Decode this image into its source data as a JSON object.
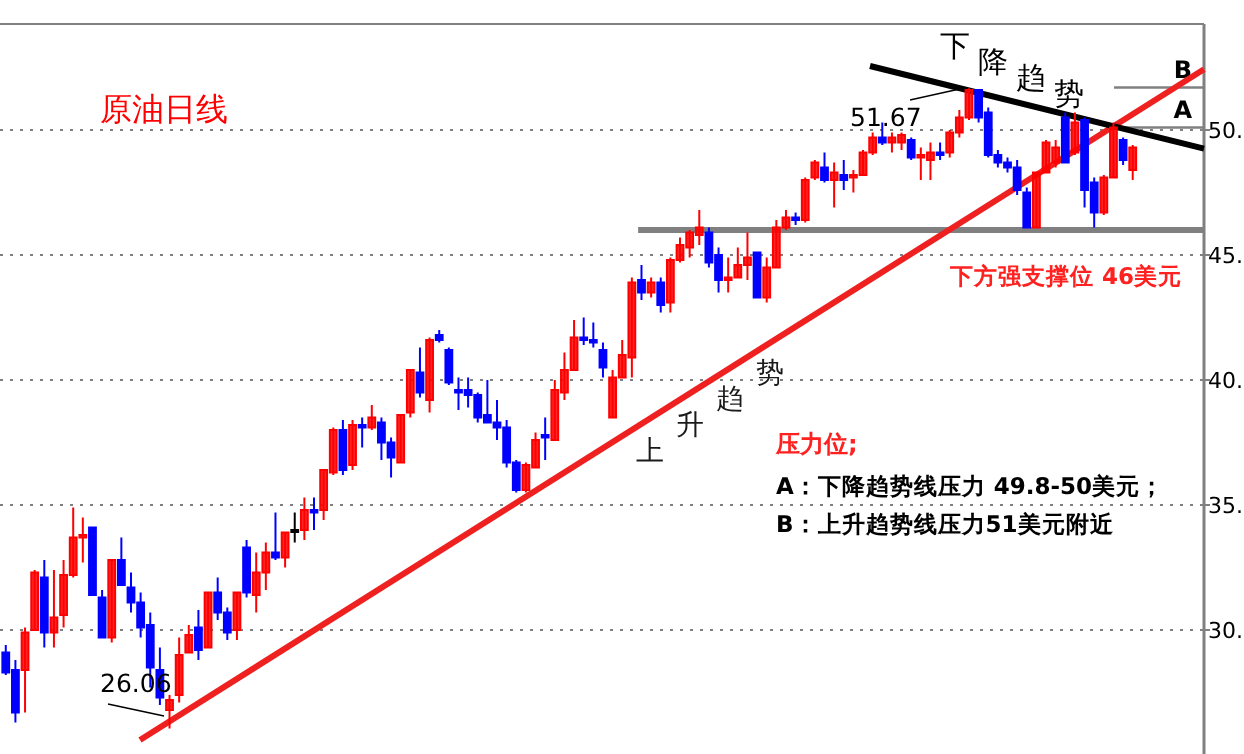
{
  "chart_data": {
    "type": "candlestick",
    "title": "原油日线",
    "categories": [
      null,
      null,
      null,
      null,
      null,
      null,
      null,
      null,
      null,
      null,
      null,
      null,
      null,
      null,
      null,
      null,
      null,
      null,
      null,
      null,
      null,
      null,
      null,
      null,
      null,
      null,
      null,
      null,
      null,
      null,
      null,
      null,
      null,
      null,
      null,
      null,
      null,
      null,
      null,
      null,
      null,
      null,
      null,
      null,
      null,
      null,
      null,
      null,
      null,
      null,
      null,
      null,
      null,
      null,
      null,
      null,
      null,
      null,
      null,
      null,
      null,
      null,
      null,
      null,
      null,
      null,
      null,
      null,
      null,
      null,
      null,
      null,
      null,
      null,
      null,
      null,
      null,
      null,
      null,
      null,
      null,
      null,
      null,
      null,
      null,
      null,
      null,
      null,
      null,
      null,
      null,
      null,
      null,
      null,
      null,
      null,
      null,
      null,
      null,
      null,
      null,
      null,
      null,
      null,
      null,
      null,
      null,
      null,
      null,
      null,
      null,
      null,
      null,
      null,
      null,
      null,
      null,
      null
    ],
    "ohlc": [
      [
        29.1,
        29.4,
        28.2,
        28.3
      ],
      [
        28.4,
        28.8,
        26.3,
        26.7
      ],
      [
        28.4,
        30.1,
        26.7,
        29.9
      ],
      [
        30.0,
        32.4,
        30.0,
        32.3
      ],
      [
        32.1,
        32.8,
        29.3,
        29.9
      ],
      [
        29.9,
        32.4,
        29.3,
        30.5
      ],
      [
        30.6,
        32.8,
        30.1,
        32.2
      ],
      [
        32.2,
        34.9,
        32.1,
        33.7
      ],
      [
        33.7,
        34.5,
        32.7,
        33.8
      ],
      [
        34.1,
        34.1,
        31.4,
        31.4
      ],
      [
        31.3,
        31.6,
        29.7,
        29.7
      ],
      [
        29.7,
        32.8,
        29.5,
        32.8
      ],
      [
        32.8,
        33.7,
        31.8,
        31.8
      ],
      [
        31.7,
        32.3,
        30.7,
        31.1
      ],
      [
        31.1,
        31.5,
        29.7,
        30.1
      ],
      [
        30.2,
        30.7,
        27.7,
        28.5
      ],
      [
        28.4,
        29.3,
        27.0,
        27.3
      ],
      [
        26.8,
        27.4,
        26.06,
        27.2
      ],
      [
        27.4,
        29.7,
        27.1,
        29.0
      ],
      [
        29.1,
        30.2,
        29.1,
        29.8
      ],
      [
        30.1,
        30.8,
        28.8,
        29.2
      ],
      [
        29.3,
        31.5,
        29.3,
        31.5
      ],
      [
        31.5,
        32.1,
        30.4,
        30.7
      ],
      [
        30.7,
        30.9,
        29.6,
        29.9
      ],
      [
        30.0,
        31.5,
        29.6,
        31.5
      ],
      [
        33.3,
        33.6,
        31.3,
        31.5
      ],
      [
        31.4,
        33.1,
        30.7,
        32.3
      ],
      [
        32.3,
        33.5,
        31.6,
        33.1
      ],
      [
        33.1,
        34.7,
        32.8,
        32.9
      ],
      [
        32.9,
        33.9,
        32.5,
        33.9
      ],
      [
        34.0,
        34.7,
        33.5,
        34.0
      ],
      [
        34.0,
        35.3,
        33.6,
        34.8
      ],
      [
        34.8,
        35.3,
        34.0,
        34.7
      ],
      [
        34.8,
        36.4,
        34.4,
        36.4
      ],
      [
        36.3,
        38.1,
        36.2,
        38.0
      ],
      [
        38.0,
        38.4,
        36.2,
        36.4
      ],
      [
        36.6,
        38.4,
        36.4,
        38.2
      ],
      [
        38.2,
        38.5,
        37.3,
        38.1
      ],
      [
        38.1,
        39.0,
        38.0,
        38.5
      ],
      [
        38.3,
        38.5,
        36.8,
        37.5
      ],
      [
        37.5,
        37.7,
        36.1,
        36.9
      ],
      [
        36.7,
        38.6,
        36.7,
        38.6
      ],
      [
        38.7,
        40.4,
        38.5,
        40.4
      ],
      [
        40.3,
        41.3,
        39.3,
        39.5
      ],
      [
        39.2,
        41.7,
        38.7,
        41.6
      ],
      [
        41.8,
        42.0,
        41.5,
        41.6
      ],
      [
        41.2,
        41.3,
        39.8,
        39.9
      ],
      [
        39.6,
        40.1,
        38.8,
        39.5
      ],
      [
        39.6,
        40.1,
        38.9,
        39.4
      ],
      [
        39.4,
        39.5,
        38.3,
        38.5
      ],
      [
        38.6,
        40.0,
        38.3,
        38.3
      ],
      [
        38.3,
        39.2,
        37.6,
        38.1
      ],
      [
        38.1,
        38.4,
        36.5,
        36.7
      ],
      [
        36.7,
        36.8,
        35.5,
        35.6
      ],
      [
        35.6,
        36.7,
        35.5,
        36.6
      ],
      [
        36.5,
        37.9,
        36.5,
        37.6
      ],
      [
        37.8,
        38.5,
        36.8,
        37.7
      ],
      [
        37.6,
        40.0,
        37.6,
        39.6
      ],
      [
        39.5,
        41.1,
        39.2,
        40.4
      ],
      [
        40.4,
        42.4,
        40.4,
        41.7
      ],
      [
        41.7,
        42.5,
        41.4,
        41.6
      ],
      [
        41.6,
        42.3,
        41.3,
        41.5
      ],
      [
        41.2,
        41.5,
        40.1,
        40.5
      ],
      [
        38.5,
        40.4,
        38.5,
        40.1
      ],
      [
        40.1,
        41.6,
        40.1,
        41.0
      ],
      [
        40.9,
        44.1,
        40.1,
        43.9
      ],
      [
        44.0,
        44.6,
        43.2,
        43.5
      ],
      [
        43.5,
        44.1,
        43.3,
        43.9
      ],
      [
        43.9,
        44.1,
        42.7,
        43.0
      ],
      [
        43.1,
        44.9,
        42.7,
        44.8
      ],
      [
        44.8,
        45.7,
        44.7,
        45.4
      ],
      [
        45.3,
        46.0,
        44.9,
        45.9
      ],
      [
        45.8,
        46.8,
        45.4,
        46.1
      ],
      [
        45.9,
        46.1,
        44.5,
        44.7
      ],
      [
        45.0,
        45.3,
        43.5,
        44.0
      ],
      [
        44.0,
        44.9,
        43.5,
        44.1
      ],
      [
        44.1,
        45.3,
        44.1,
        44.6
      ],
      [
        44.6,
        45.9,
        44.0,
        44.9
      ],
      [
        45.1,
        45.1,
        43.3,
        43.3
      ],
      [
        43.3,
        44.9,
        43.1,
        44.5
      ],
      [
        44.5,
        46.4,
        44.5,
        46.1
      ],
      [
        46.1,
        46.8,
        46.0,
        46.5
      ],
      [
        46.5,
        46.7,
        46.2,
        46.4
      ],
      [
        46.4,
        48.1,
        46.3,
        48.0
      ],
      [
        48.1,
        48.8,
        48.0,
        48.7
      ],
      [
        48.5,
        49.1,
        47.9,
        48.0
      ],
      [
        48.0,
        48.7,
        46.9,
        48.3
      ],
      [
        48.2,
        48.8,
        47.6,
        48.0
      ],
      [
        48.1,
        48.4,
        47.5,
        48.2
      ],
      [
        48.2,
        49.2,
        48.2,
        49.1
      ],
      [
        49.1,
        49.9,
        49.0,
        49.7
      ],
      [
        49.7,
        50.3,
        49.4,
        49.5
      ],
      [
        49.5,
        49.9,
        49.1,
        49.7
      ],
      [
        49.5,
        49.9,
        49.2,
        49.8
      ],
      [
        49.6,
        49.7,
        48.8,
        48.9
      ],
      [
        48.9,
        49.3,
        48.0,
        49.0
      ],
      [
        48.8,
        49.5,
        48.0,
        49.1
      ],
      [
        49.1,
        49.5,
        48.8,
        49.0
      ],
      [
        49.1,
        50.0,
        48.9,
        49.9
      ],
      [
        49.9,
        50.8,
        49.7,
        50.5
      ],
      [
        50.5,
        51.67,
        50.4,
        51.6
      ],
      [
        51.6,
        51.6,
        50.3,
        50.5
      ],
      [
        50.7,
        50.9,
        48.9,
        49.0
      ],
      [
        49.0,
        49.2,
        48.5,
        48.7
      ],
      [
        48.7,
        48.9,
        48.3,
        48.5
      ],
      [
        48.5,
        48.8,
        47.4,
        47.6
      ],
      [
        47.5,
        47.7,
        46.1,
        46.1
      ],
      [
        46.1,
        48.3,
        46.1,
        48.3
      ],
      [
        48.3,
        49.6,
        48.3,
        49.5
      ],
      [
        48.7,
        49.6,
        48.5,
        49.3
      ],
      [
        50.5,
        50.7,
        48.7,
        48.7
      ],
      [
        49.1,
        50.7,
        49.0,
        50.3
      ],
      [
        50.4,
        50.5,
        46.9,
        47.6
      ],
      [
        47.9,
        48.1,
        46.1,
        46.7
      ],
      [
        46.7,
        48.2,
        46.6,
        48.1
      ],
      [
        48.1,
        50.3,
        48.1,
        50.1
      ],
      [
        49.6,
        49.7,
        48.6,
        48.8
      ],
      [
        48.4,
        49.4,
        48.0,
        49.3
      ]
    ],
    "colors": [
      "#0000ff",
      "#0000ff",
      "#ff0000",
      "#ff0000",
      "#0000ff",
      "#ff0000",
      "#ff0000",
      "#ff0000",
      "#ff0000",
      "#0000ff",
      "#0000ff",
      "#ff0000",
      "#0000ff",
      "#0000ff",
      "#0000ff",
      "#0000ff",
      "#0000ff",
      "#ff0000",
      "#ff0000",
      "#ff0000",
      "#0000ff",
      "#ff0000",
      "#0000ff",
      "#0000ff",
      "#ff0000",
      "#0000ff",
      "#ff0000",
      "#ff0000",
      "#0000ff",
      "#ff0000",
      "#000000",
      "#ff0000",
      "#0000ff",
      "#ff0000",
      "#ff0000",
      "#0000ff",
      "#ff0000",
      "#0000ff",
      "#ff0000",
      "#0000ff",
      "#0000ff",
      "#ff0000",
      "#ff0000",
      "#0000ff",
      "#ff0000",
      "#0000ff",
      "#0000ff",
      "#0000ff",
      "#0000ff",
      "#0000ff",
      "#0000ff",
      "#0000ff",
      "#0000ff",
      "#0000ff",
      "#ff0000",
      "#ff0000",
      "#0000ff",
      "#ff0000",
      "#ff0000",
      "#ff0000",
      "#0000ff",
      "#0000ff",
      "#0000ff",
      "#ff0000",
      "#ff0000",
      "#ff0000",
      "#0000ff",
      "#ff0000",
      "#0000ff",
      "#ff0000",
      "#ff0000",
      "#ff0000",
      "#ff0000",
      "#0000ff",
      "#0000ff",
      "#ff0000",
      "#ff0000",
      "#ff0000",
      "#0000ff",
      "#ff0000",
      "#ff0000",
      "#ff0000",
      "#0000ff",
      "#ff0000",
      "#ff0000",
      "#0000ff",
      "#ff0000",
      "#0000ff",
      "#ff0000",
      "#ff0000",
      "#ff0000",
      "#0000ff",
      "#ff0000",
      "#ff0000",
      "#0000ff",
      "#ff0000",
      "#ff0000",
      "#0000ff",
      "#ff0000",
      "#ff0000",
      "#ff0000",
      "#0000ff",
      "#0000ff",
      "#0000ff",
      "#0000ff",
      "#0000ff",
      "#0000ff",
      "#ff0000",
      "#ff0000",
      "#ff0000",
      "#0000ff",
      "#ff0000",
      "#0000ff",
      "#0000ff",
      "#ff0000",
      "#ff0000",
      "#0000ff",
      "#ff0000"
    ],
    "ref_lines": [
      {
        "axis": "y",
        "value": 46,
        "color": "#808080"
      },
      {
        "axis": "y",
        "value": 50.1,
        "label": "A",
        "color": "#808080"
      },
      {
        "axis": "y",
        "value": 51.7,
        "label": "B",
        "color": "#808080"
      }
    ],
    "ylim": [
      25.04,
      54.24
    ],
    "yticks": [
      {
        "value": 30,
        "label": "30."
      },
      {
        "value": 35,
        "label": "35."
      },
      {
        "value": 40,
        "label": "40."
      },
      {
        "value": 45,
        "label": "45."
      },
      {
        "value": 50,
        "label": "50."
      }
    ],
    "tick_labels": "y",
    "grid": "y",
    "annotations": [
      "51.67",
      "26.06",
      "下降趋势",
      "上升趋势",
      "压力位;",
      "A：下降趋势线压力 49.8-50美元；",
      "B：上升趋势线压力51美元附近",
      "下方强支撑位 46美元"
    ]
  }
}
